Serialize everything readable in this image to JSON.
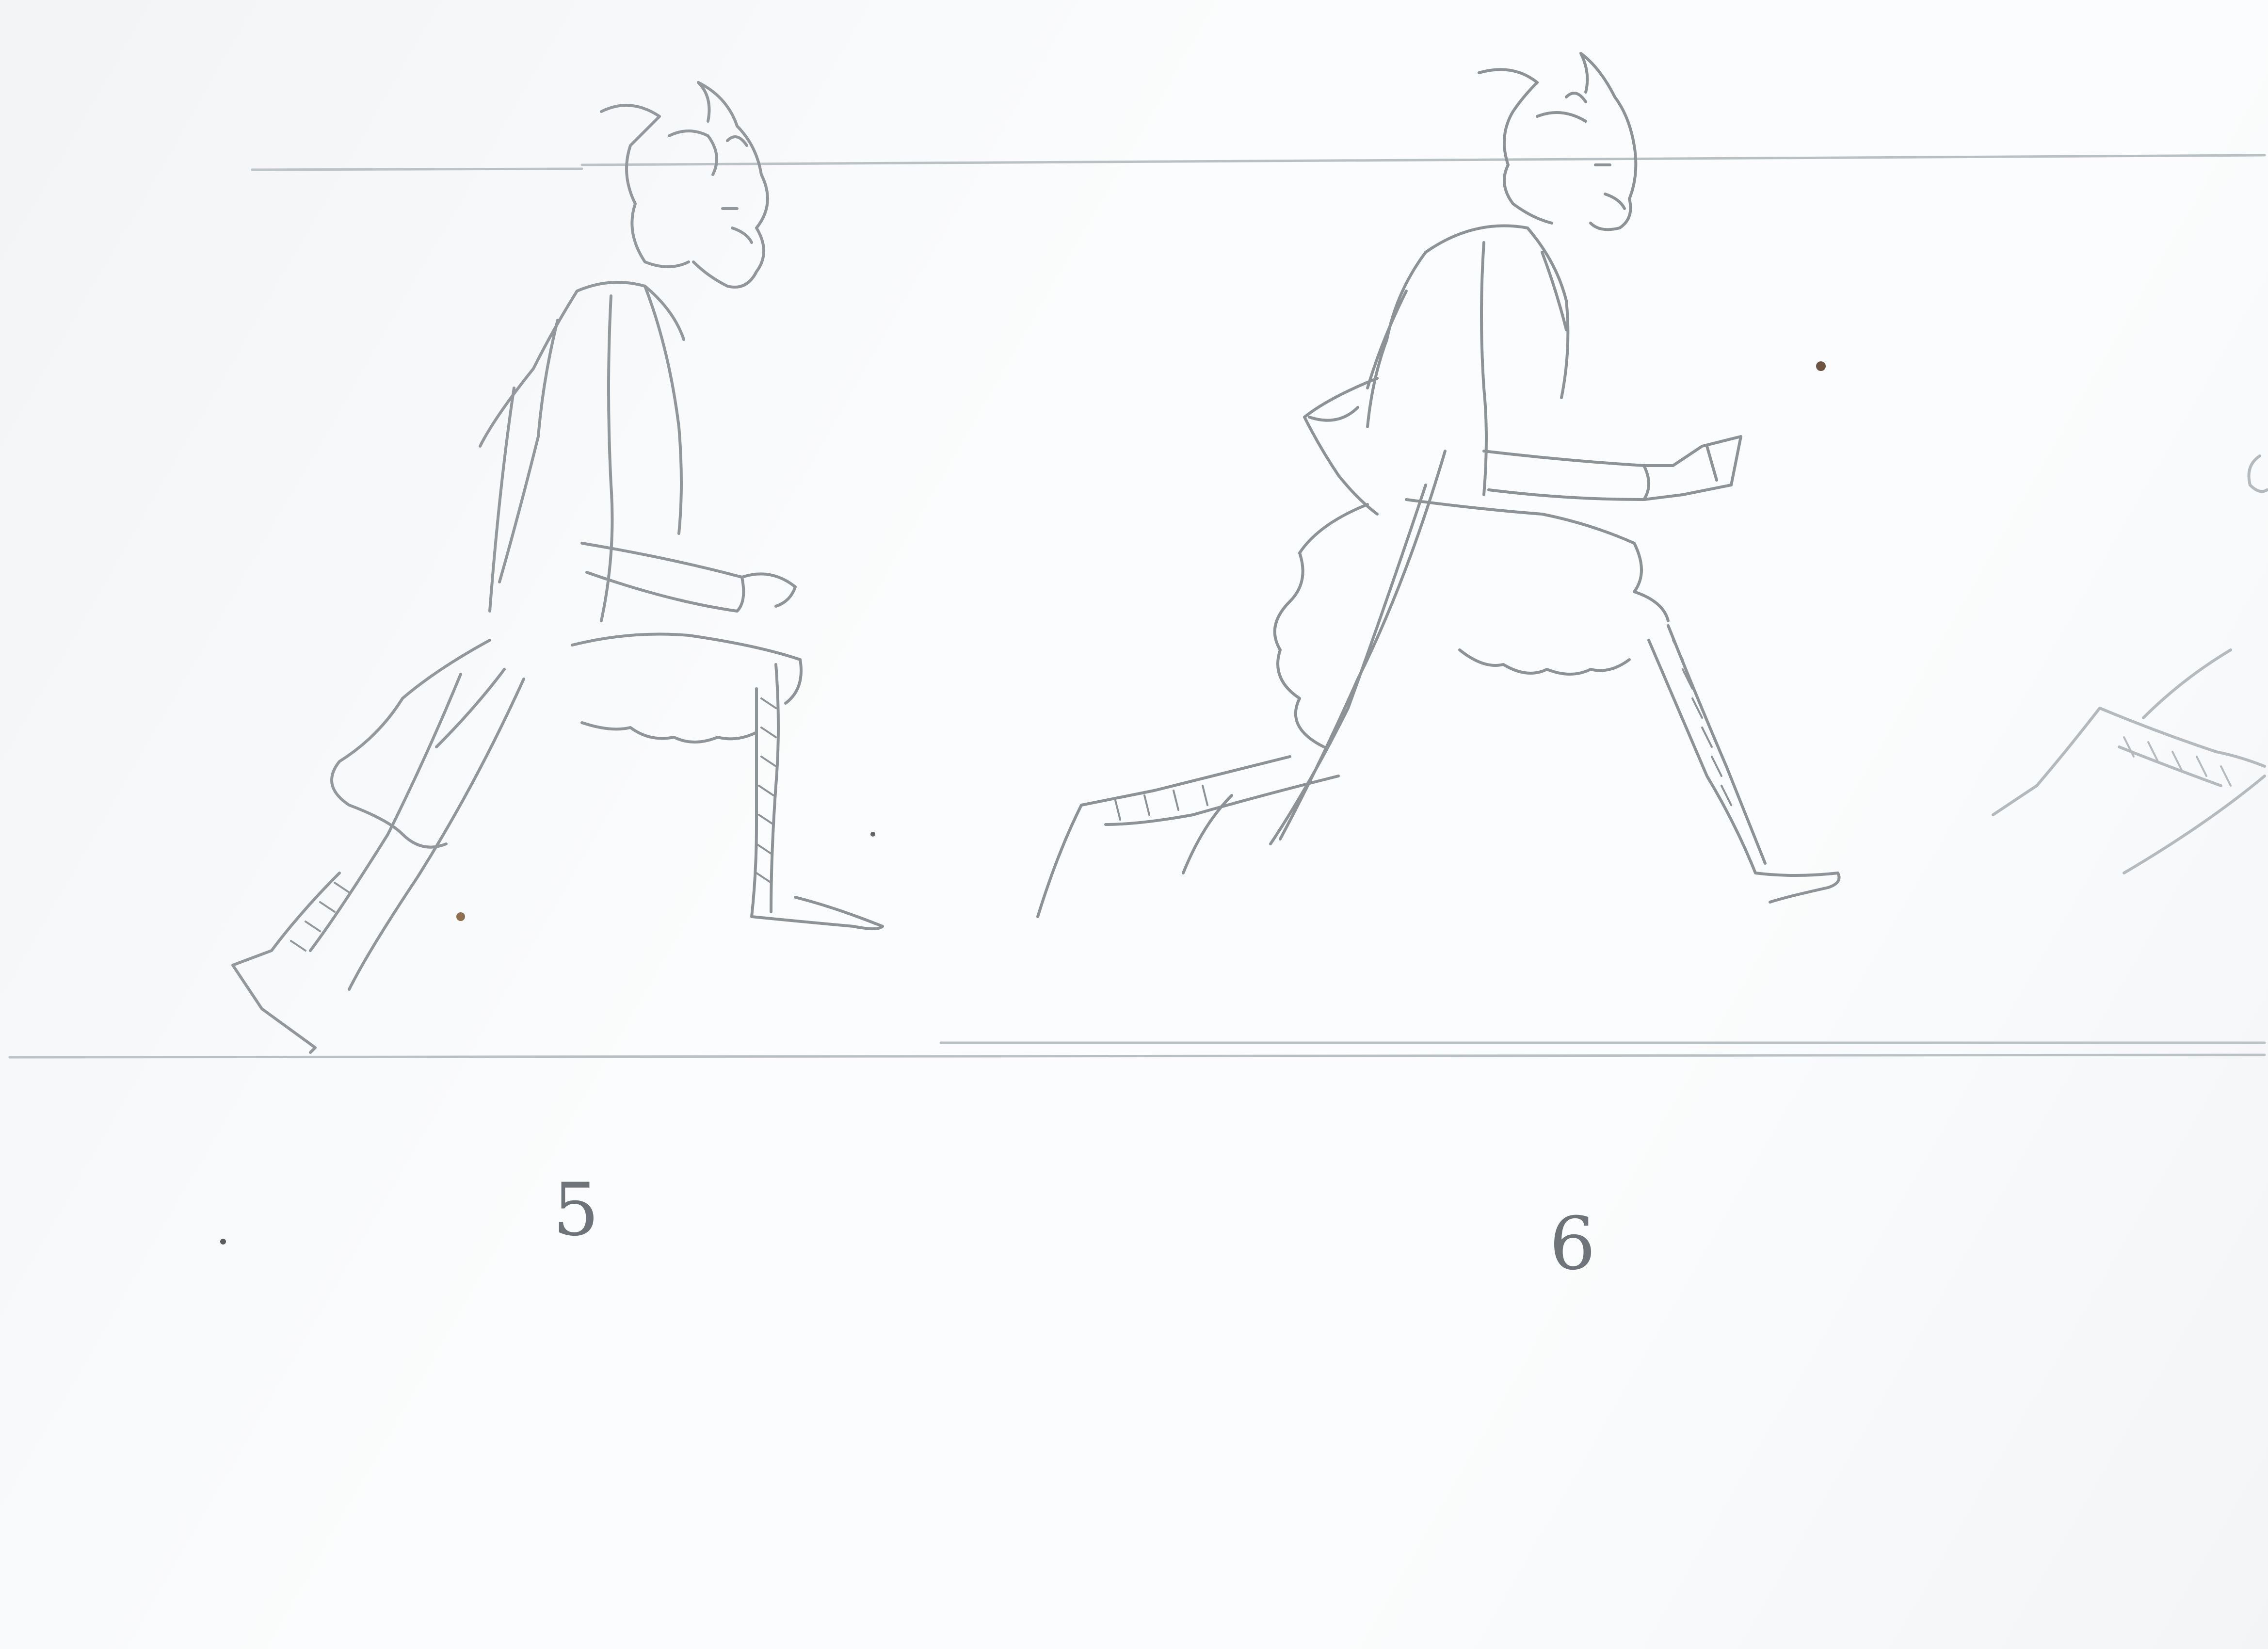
{
  "frames": [
    {
      "number": "5"
    },
    {
      "number": "6"
    }
  ],
  "colors": {
    "paper": "#fbfcfd",
    "pencil": "#8d9297",
    "pencil_light": "#b3b8bc",
    "guide_line": "#b9c0c4"
  }
}
